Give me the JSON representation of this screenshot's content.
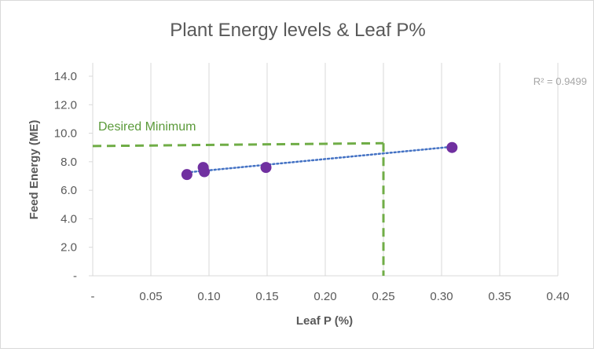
{
  "chart_data": {
    "type": "scatter",
    "title": "Plant Energy levels & Leaf P%",
    "xlabel": "Leaf P (%)",
    "ylabel": "Feed Energy (ME)",
    "xlim": [
      0,
      0.4
    ],
    "ylim": [
      0,
      14
    ],
    "x_ticks": [
      0,
      0.05,
      0.1,
      0.15,
      0.2,
      0.25,
      0.3,
      0.35,
      0.4
    ],
    "x_tick_labels": [
      "-",
      "0.05",
      "0.10",
      "0.15",
      "0.20",
      "0.25",
      "0.30",
      "0.35",
      "0.40"
    ],
    "y_ticks": [
      0,
      2,
      4,
      6,
      8,
      10,
      12,
      14
    ],
    "y_tick_labels": [
      "-",
      "2.0",
      "4.0",
      "6.0",
      "8.0",
      "10.0",
      "12.0",
      "14.0"
    ],
    "grid": "vertical",
    "series": [
      {
        "name": "Feed Energy",
        "color": "#7030a0",
        "points": [
          {
            "x": 0.081,
            "y": 7.1
          },
          {
            "x": 0.095,
            "y": 7.6
          },
          {
            "x": 0.096,
            "y": 7.3
          },
          {
            "x": 0.149,
            "y": 7.6
          },
          {
            "x": 0.309,
            "y": 9.0
          }
        ]
      }
    ],
    "trendline": {
      "type": "linear",
      "style": "dotted",
      "color": "#4472c4",
      "start": {
        "x": 0.081,
        "y": 7.25
      },
      "end": {
        "x": 0.309,
        "y": 9.05
      },
      "r2_label": "R² = 0.9499"
    },
    "reference_lines": {
      "color": "#70ad47",
      "label": "Desired Minimum",
      "horizontal": {
        "y_start": 9.1,
        "y_end": 9.3,
        "x_from": 0,
        "x_to": 0.25
      },
      "vertical": {
        "x": 0.25,
        "y_from": 0,
        "y_to": 9.3
      }
    }
  }
}
